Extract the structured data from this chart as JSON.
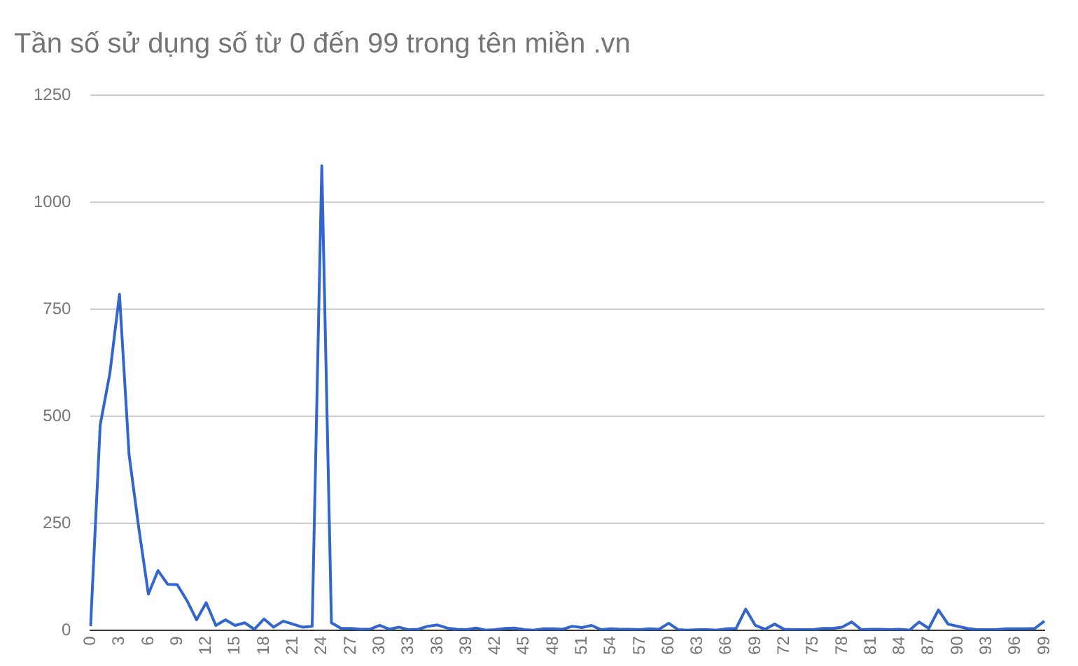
{
  "chart_data": {
    "type": "line",
    "title": "Tần số sử dụng số từ 0 đến 99 trong tên miền .vn",
    "categories": [
      "0",
      null,
      null,
      "3",
      null,
      null,
      "6",
      null,
      null,
      "9",
      null,
      null,
      "12",
      null,
      null,
      "15",
      null,
      null,
      "18",
      null,
      null,
      "21",
      null,
      null,
      "24",
      null,
      null,
      "27",
      null,
      null,
      "30",
      null,
      null,
      "33",
      null,
      null,
      "36",
      null,
      null,
      "39",
      null,
      null,
      "42",
      null,
      null,
      "45",
      null,
      null,
      "48",
      null,
      null,
      "51",
      null,
      null,
      "54",
      null,
      null,
      "57",
      null,
      null,
      "60",
      null,
      null,
      "63",
      null,
      null,
      "66",
      null,
      null,
      "69",
      null,
      null,
      "72",
      null,
      null,
      "75",
      null,
      null,
      "78",
      null,
      null,
      "81",
      null,
      null,
      "84",
      null,
      null,
      "87",
      null,
      null,
      "90",
      null,
      null,
      "93",
      null,
      null,
      "96",
      null,
      null,
      "99"
    ],
    "series": [
      {
        "color": "#3366cc",
        "values": [
          10,
          480,
          600,
          785,
          410,
          240,
          85,
          140,
          108,
          107,
          70,
          25,
          65,
          12,
          25,
          12,
          18,
          3,
          27,
          8,
          22,
          15,
          8,
          10,
          1085,
          18,
          5,
          5,
          3,
          3,
          12,
          3,
          8,
          2,
          3,
          10,
          13,
          6,
          3,
          2,
          6,
          1,
          2,
          5,
          6,
          2,
          1,
          4,
          4,
          3,
          10,
          7,
          12,
          2,
          4,
          3,
          3,
          2,
          4,
          3,
          17,
          2,
          1,
          2,
          2,
          1,
          4,
          5,
          50,
          12,
          3,
          15,
          3,
          2,
          2,
          2,
          5,
          5,
          8,
          20,
          2,
          3,
          3,
          2,
          3,
          1,
          20,
          5,
          48,
          15,
          10,
          5,
          2,
          2,
          2,
          4,
          4,
          4,
          5,
          22
        ]
      }
    ],
    "ylim": [
      0,
      1250
    ],
    "yticks": [
      0,
      250,
      500,
      750,
      1000,
      1250
    ],
    "grid": "y",
    "legend": false,
    "marker": "none",
    "line_style": "solid"
  }
}
